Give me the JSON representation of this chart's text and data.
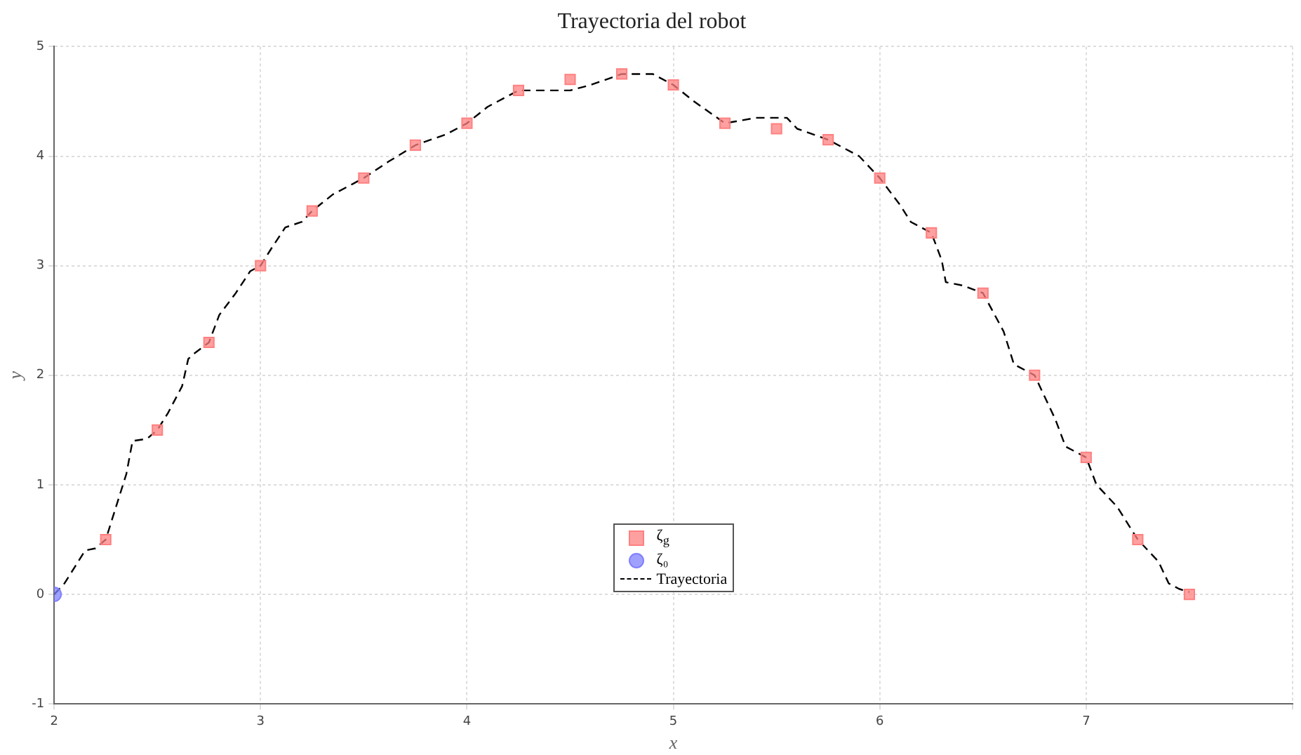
{
  "chart_data": {
    "type": "scatter",
    "title": "Trayectoria del robot",
    "xlabel": "x",
    "ylabel": "y",
    "xlim": [
      2,
      8
    ],
    "xticks": [
      2,
      3,
      4,
      5,
      6,
      7,
      {
        "value": 8,
        "label": null
      }
    ],
    "ylim": [
      -1,
      5
    ],
    "yticks": [
      -1,
      0,
      1,
      2,
      3,
      4,
      5
    ],
    "grid": true,
    "legend": "bottom",
    "series": [
      {
        "name": "ζ$_{g}$",
        "marker": "square",
        "color": "#ff8080",
        "x": [
          2.25,
          2.5,
          2.75,
          3,
          3.25,
          3.5,
          3.75,
          4,
          4.25,
          4.5,
          4.75,
          5,
          5.25,
          5.5,
          5.75,
          6,
          6.25,
          6.5,
          6.75,
          7,
          7.25,
          7.5
        ],
        "values": [
          0.5,
          1.5,
          2.3,
          3,
          3.5,
          3.8,
          4.1,
          4.3,
          4.6,
          4.7,
          4.75,
          4.65,
          4.3,
          4.25,
          4.15,
          3.8,
          3.3,
          2.75,
          2.0,
          1.25,
          0.5,
          0
        ]
      },
      {
        "name": "ζ₀",
        "marker": "circle",
        "color": "#8080ff",
        "x": [
          2
        ],
        "values": [
          0
        ]
      },
      {
        "name": "Trayectoria",
        "type": "line",
        "marker": "none",
        "line_style": "dashed",
        "color": "#000000",
        "x": [
          2,
          2.05,
          2.1,
          2.15,
          2.2,
          2.25,
          2.3,
          2.35,
          2.38,
          2.45,
          2.5,
          2.55,
          2.62,
          2.65,
          2.68,
          2.75,
          2.8,
          2.88,
          2.95,
          3,
          3.05,
          3.12,
          3.2,
          3.25,
          3.35,
          3.45,
          3.5,
          3.62,
          3.75,
          3.9,
          4,
          4.1,
          4.25,
          4.4,
          4.5,
          4.6,
          4.75,
          4.9,
          5,
          5.1,
          5.25,
          5.4,
          5.55,
          5.6,
          5.75,
          5.9,
          6,
          6.1,
          6.15,
          6.25,
          6.3,
          6.32,
          6.4,
          6.5,
          6.6,
          6.65,
          6.75,
          6.85,
          6.9,
          7,
          7.05,
          7.15,
          7.25,
          7.35,
          7.4,
          7.45,
          7.5
        ],
        "values": [
          0,
          0.1,
          0.25,
          0.4,
          0.42,
          0.5,
          0.8,
          1.1,
          1.4,
          1.42,
          1.5,
          1.65,
          1.9,
          2.15,
          2.2,
          2.3,
          2.55,
          2.75,
          2.95,
          3,
          3.15,
          3.35,
          3.4,
          3.5,
          3.65,
          3.75,
          3.8,
          3.95,
          4.1,
          4.2,
          4.3,
          4.45,
          4.6,
          4.6,
          4.6,
          4.65,
          4.75,
          4.75,
          4.65,
          4.5,
          4.3,
          4.35,
          4.35,
          4.25,
          4.15,
          4,
          3.8,
          3.55,
          3.4,
          3.3,
          3.05,
          2.85,
          2.82,
          2.75,
          2.4,
          2.1,
          2,
          1.6,
          1.35,
          1.25,
          1,
          0.8,
          0.5,
          0.3,
          0.1,
          0.05,
          0.02
        ]
      }
    ]
  }
}
